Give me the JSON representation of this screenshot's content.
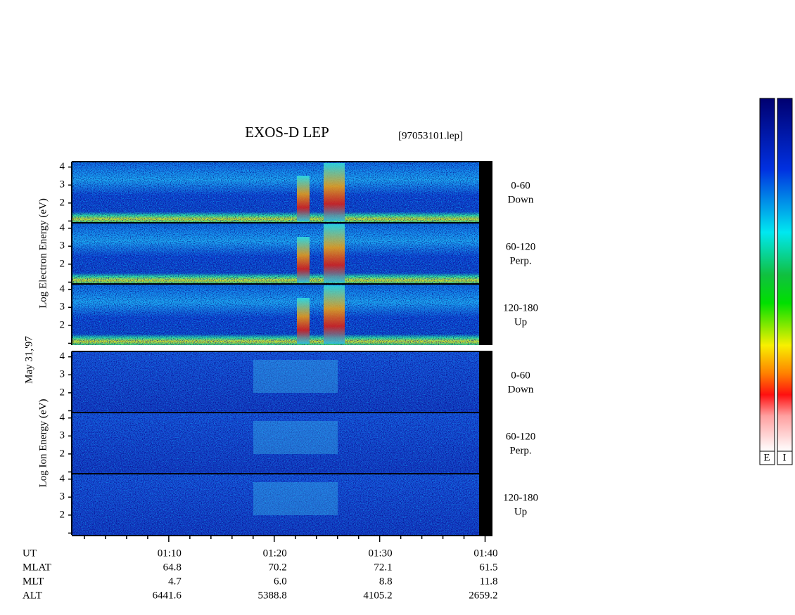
{
  "title": "EXOS-D LEP",
  "file": "[97053101.lep]",
  "date": "May 31,'97",
  "chart_data": {
    "type": "spectrogram",
    "groups": [
      {
        "ylabel": "Log Electron Energy (eV)",
        "panels": [
          {
            "angle": "0-60",
            "direction": "Down"
          },
          {
            "angle": "60-120",
            "direction": "Perp."
          },
          {
            "angle": "120-180",
            "direction": "Up"
          }
        ]
      },
      {
        "ylabel": "Log Ion Energy (eV)",
        "panels": [
          {
            "angle": "0-60",
            "direction": "Down"
          },
          {
            "angle": "60-120",
            "direction": "Perp."
          },
          {
            "angle": "120-180",
            "direction": "Up"
          }
        ]
      }
    ],
    "ylim": [
      0.9,
      4.3
    ],
    "yticks": [
      2,
      3,
      4
    ],
    "minor_yticks": [
      1
    ],
    "xlim": [
      0.8,
      40.7
    ],
    "xticks": [
      {
        "value": 10,
        "label": "01:10"
      },
      {
        "value": 20,
        "label": "01:20"
      },
      {
        "value": 30,
        "label": "01:30"
      },
      {
        "value": 40,
        "label": "01:40"
      }
    ],
    "minor_xticks": [
      2,
      4,
      6,
      8,
      12,
      14,
      16,
      18,
      22,
      24,
      26,
      28,
      32,
      34,
      36,
      38
    ]
  },
  "ephemeris": {
    "axis_name": "UT",
    "rows": [
      {
        "name": "MLAT",
        "values": [
          "64.8",
          "70.2",
          "72.1",
          "61.5"
        ]
      },
      {
        "name": "MLT",
        "values": [
          "4.7",
          "6.0",
          "8.8",
          "11.8"
        ]
      },
      {
        "name": "ALT",
        "values": [
          "6441.6",
          "5388.8",
          "4105.2",
          "2659.2"
        ]
      }
    ]
  },
  "colorbar_labels": [
    "E",
    "I"
  ]
}
